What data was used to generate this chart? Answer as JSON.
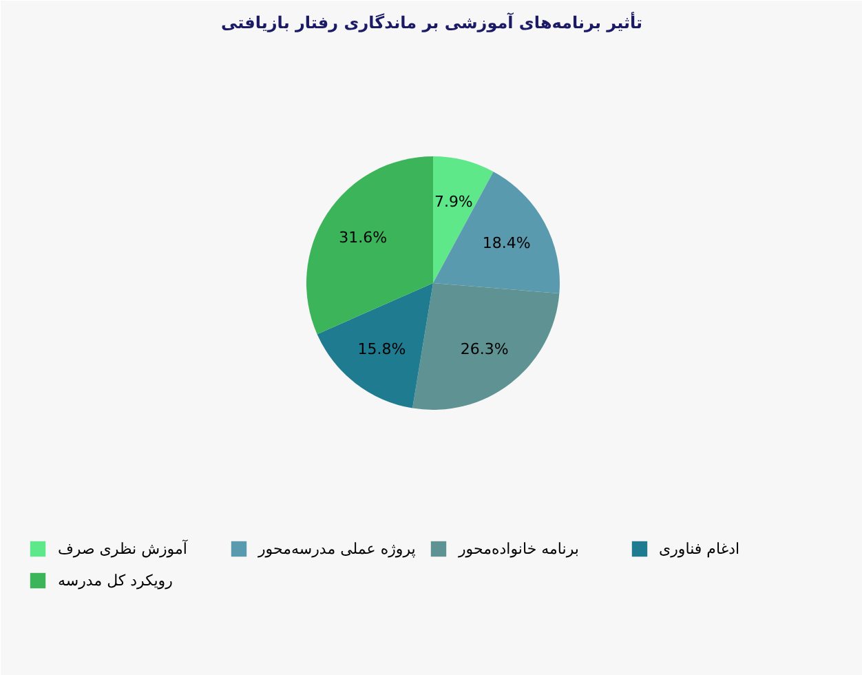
{
  "chart_data": {
    "type": "pie",
    "title": "تأثیر برنامه‌های آموزشی بر ماندگاری رفتار بازیافتی",
    "categories": [
      "آموزش نظری صرف",
      "پروژه عملی مدرسه‌محور",
      "برنامه خانواده‌محور",
      "ادغام فناوری",
      "رویکرد کل مدرسه"
    ],
    "values": [
      7.9,
      18.4,
      26.3,
      15.8,
      31.6
    ],
    "value_labels": [
      "7.9%",
      "18.4%",
      "26.3%",
      "15.8%",
      "31.6%"
    ],
    "colors": [
      "#5ee88a",
      "#5a9aae",
      "#5f9292",
      "#1f7b8f",
      "#3cb45a"
    ],
    "legend": "bottom"
  }
}
